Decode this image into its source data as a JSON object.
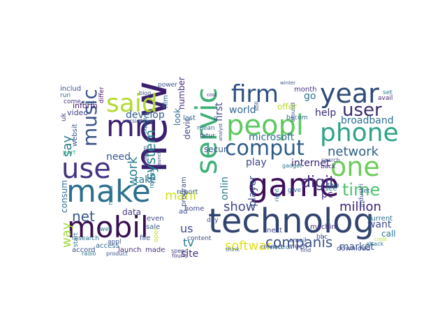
{
  "words": [
    {
      "text": "new",
      "color": "#3b1f6e"
    },
    {
      "text": "technolog",
      "color": "#31446f"
    },
    {
      "text": "mobil",
      "color": "#3b1050"
    },
    {
      "text": "game",
      "color": "#3d0f5a"
    },
    {
      "text": "peopl",
      "color": "#5ec962"
    },
    {
      "text": "said",
      "color": "#b3d930"
    },
    {
      "text": "servic",
      "color": "#3fb078"
    },
    {
      "text": "year",
      "color": "#2f4b78"
    },
    {
      "text": "make",
      "color": "#2e6f8e"
    },
    {
      "text": "mr",
      "color": "#3d1f70"
    },
    {
      "text": "use",
      "color": "#453483"
    },
    {
      "text": "phone",
      "color": "#2fa38a"
    },
    {
      "text": "one",
      "color": "#6ccd5a"
    },
    {
      "text": "comput",
      "color": "#2e5d8a"
    },
    {
      "text": "music",
      "color": "#3b538b"
    },
    {
      "text": "firm",
      "color": "#2d4e81"
    },
    {
      "text": "user",
      "color": "#3a2a6e"
    },
    {
      "text": "time",
      "color": "#4ec36b"
    },
    {
      "text": "softwar",
      "color": "#e1e11d"
    },
    {
      "text": "companis",
      "color": "#3b538b"
    },
    {
      "text": "network",
      "color": "#2d5f8a"
    },
    {
      "text": "system",
      "color": "#25858e"
    },
    {
      "text": "digit",
      "color": "#44337f"
    },
    {
      "text": "show",
      "color": "#404788"
    },
    {
      "text": "net",
      "color": "#39568c"
    },
    {
      "text": "mani",
      "color": "#d0e11c"
    },
    {
      "text": "million",
      "color": "#3c2276"
    },
    {
      "text": "way",
      "color": "#a0da39"
    },
    {
      "text": "work",
      "color": "#27808e"
    },
    {
      "text": "say",
      "color": "#2a7a8e"
    },
    {
      "text": "broadband",
      "color": "#2d708e"
    },
    {
      "text": "market",
      "color": "#38588c"
    },
    {
      "text": "internet",
      "color": "#3c2478"
    },
    {
      "text": "microsoft",
      "color": "#2f6b8e"
    },
    {
      "text": "onlin",
      "color": "#2a788e"
    },
    {
      "text": "play",
      "color": "#404688"
    },
    {
      "text": "player",
      "color": "#3b548c"
    },
    {
      "text": "us",
      "color": "#3f4889"
    },
    {
      "text": "tv",
      "color": "#2a788e"
    },
    {
      "text": "site",
      "color": "#46307e"
    },
    {
      "text": "develop",
      "color": "#345f8d"
    },
    {
      "text": "world",
      "color": "#31658e"
    },
    {
      "text": "first",
      "color": "#3f4788"
    },
    {
      "text": "pc",
      "color": "#482475"
    },
    {
      "text": "go",
      "color": "#2c728e"
    },
    {
      "text": "help",
      "color": "#3b2a7a"
    },
    {
      "text": "want",
      "color": "#3e4a89"
    },
    {
      "text": "need",
      "color": "#39568c"
    },
    {
      "text": "take",
      "color": "#2c728e"
    },
    {
      "text": "consum",
      "color": "#2e6e8e"
    },
    {
      "text": "data",
      "color": "#453882"
    },
    {
      "text": "secur",
      "color": "#3b528b"
    },
    {
      "text": "devic",
      "color": "#3f4889"
    },
    {
      "text": "look",
      "color": "#2f6c8e"
    },
    {
      "text": "number",
      "color": "#472d7b"
    },
    {
      "text": "inform",
      "color": "#48186a"
    },
    {
      "text": "video",
      "color": "#404588"
    },
    {
      "text": "offer",
      "color": "#b8de29"
    },
    {
      "text": "month",
      "color": "#46327e"
    },
    {
      "text": "call",
      "color": "#2a788e"
    },
    {
      "text": "download",
      "color": "#3e4989"
    },
    {
      "text": "uk",
      "color": "#3f4788"
    },
    {
      "text": "includ",
      "color": "#3b528b"
    },
    {
      "text": "home",
      "color": "#3e4a89"
    },
    {
      "text": "report",
      "color": "#355e8d"
    },
    {
      "text": "accord",
      "color": "#3a548c"
    },
    {
      "text": "launch",
      "color": "#482878"
    },
    {
      "text": "made",
      "color": "#46337e"
    },
    {
      "text": "access",
      "color": "#31688e"
    },
    {
      "text": "sale",
      "color": "#38598c"
    },
    {
      "text": "even",
      "color": "#3e4a89"
    },
    {
      "text": "file",
      "color": "#3b528b"
    },
    {
      "text": "well",
      "color": "#2a768e"
    },
    {
      "text": "research",
      "color": "#2d708e"
    },
    {
      "text": "media",
      "color": "#26818e"
    },
    {
      "text": "come",
      "color": "#453781"
    },
    {
      "text": "start",
      "color": "#2c738e"
    },
    {
      "text": "part",
      "color": "#35b779"
    },
    {
      "text": "current",
      "color": "#2e6d8e"
    },
    {
      "text": "industri",
      "color": "#3b528b"
    },
    {
      "text": "machin",
      "color": "#46307e"
    },
    {
      "text": "next",
      "color": "#3f4788"
    },
    {
      "text": "much",
      "color": "#404588"
    },
    {
      "text": "content",
      "color": "#3d4d8a"
    },
    {
      "text": "film",
      "color": "#31668e"
    },
    {
      "text": "last",
      "color": "#31688e"
    },
    {
      "text": "mean",
      "color": "#2f6b8e"
    },
    {
      "text": "appl",
      "color": "#3b528b"
    },
    {
      "text": "program",
      "color": "#3e4989"
    },
    {
      "text": "futur",
      "color": "#404688"
    },
    {
      "text": "day",
      "color": "#3f4788"
    },
    {
      "text": "becom",
      "color": "#31688e"
    },
    {
      "text": "see",
      "color": "#26828e"
    },
    {
      "text": "two",
      "color": "#2e6f8e"
    },
    {
      "text": "let",
      "color": "#2d718e"
    },
    {
      "text": "back",
      "color": "#46307e"
    },
    {
      "text": "give",
      "color": "#355f8d"
    },
    {
      "text": "email",
      "color": "#39568c"
    },
    {
      "text": "bbc",
      "color": "#3e4989"
    },
    {
      "text": "set",
      "color": "#2a788e"
    },
    {
      "text": "avail",
      "color": "#482475"
    },
    {
      "text": "websit",
      "color": "#3b528b"
    },
    {
      "text": "differ",
      "color": "#48186a"
    },
    {
      "text": "power",
      "color": "#39568c"
    },
    {
      "text": "run",
      "color": "#2d708e"
    },
    {
      "text": "still",
      "color": "#3b528b"
    },
    {
      "text": "search",
      "color": "#3e4989"
    },
    {
      "text": "think",
      "color": "#31688e"
    },
    {
      "text": "speed",
      "color": "#404588"
    },
    {
      "text": "radio",
      "color": "#2a788e"
    },
    {
      "text": "product",
      "color": "#3b528b"
    },
    {
      "text": "found",
      "color": "#46307e"
    },
    {
      "text": "ad",
      "color": "#3e4a89"
    },
    {
      "text": "attack",
      "color": "#2c728e"
    },
    {
      "text": "around",
      "color": "#39568c"
    },
    {
      "text": "connect",
      "color": "#3f4788"
    },
    {
      "text": "electron",
      "color": "#2d708e"
    },
    {
      "text": "find",
      "color": "#404688"
    },
    {
      "text": "gadget",
      "color": "#2a788e"
    },
    {
      "text": "version",
      "color": "#3e4989"
    },
    {
      "text": "three",
      "color": "#31688e"
    },
    {
      "text": "creat",
      "color": "#b8de29"
    },
    {
      "text": "busi",
      "color": "#39568c"
    },
    {
      "text": "oper",
      "color": "#b8de29"
    },
    {
      "text": "blog",
      "color": "#3b528b"
    },
    {
      "text": "problem",
      "color": "#404588"
    },
    {
      "text": "expect",
      "color": "#2c728e"
    },
    {
      "text": "releas",
      "color": "#2a788e"
    },
    {
      "text": "cost",
      "color": "#46307e"
    },
    {
      "text": "analyst",
      "color": "#3e4989"
    },
    {
      "text": "winter",
      "color": "#3b528b"
    },
    {
      "text": "launch",
      "color": "#3e4989"
    },
    {
      "text": "right",
      "color": "#2d708e"
    }
  ],
  "legend": {
    "word_count": "",
    "source": ""
  }
}
